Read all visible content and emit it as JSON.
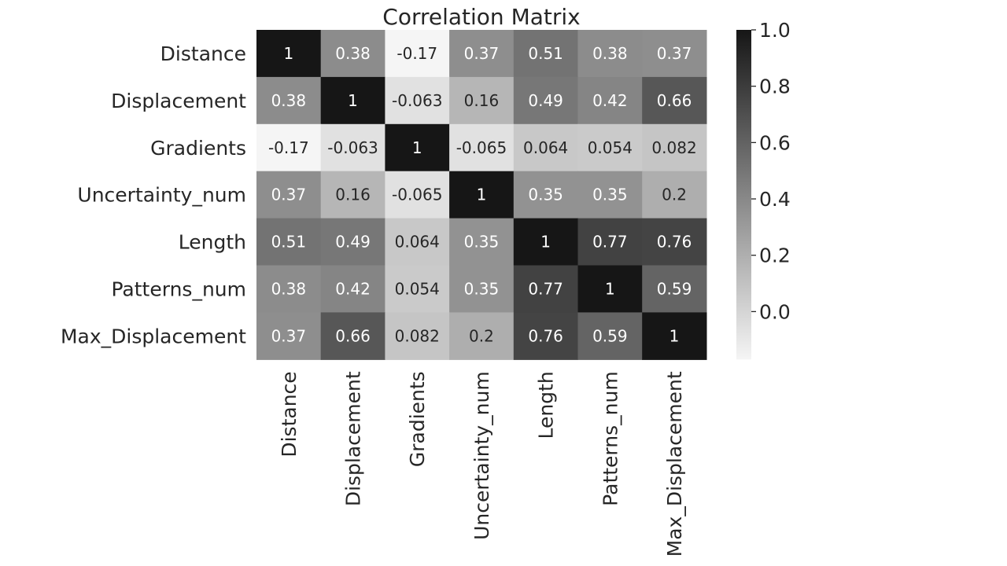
{
  "chart_data": {
    "type": "heatmap",
    "title": "Correlation Matrix",
    "xlabel": "",
    "ylabel": "",
    "rows": [
      "Distance",
      "Displacement",
      "Gradients",
      "Uncertainty_num",
      "Length",
      "Patterns_num",
      "Max_Displacement"
    ],
    "columns": [
      "Distance",
      "Displacement",
      "Gradients",
      "Uncertainty_num",
      "Length",
      "Patterns_num",
      "Max_Displacement"
    ],
    "values": [
      [
        1,
        0.38,
        -0.17,
        0.37,
        0.51,
        0.38,
        0.37
      ],
      [
        0.38,
        1,
        -0.063,
        0.16,
        0.49,
        0.42,
        0.66
      ],
      [
        -0.17,
        -0.063,
        1,
        -0.065,
        0.064,
        0.054,
        0.082
      ],
      [
        0.37,
        0.16,
        -0.065,
        1,
        0.35,
        0.35,
        0.2
      ],
      [
        0.51,
        0.49,
        0.064,
        0.35,
        1,
        0.77,
        0.76
      ],
      [
        0.38,
        0.42,
        0.054,
        0.35,
        0.77,
        1,
        0.59
      ],
      [
        0.37,
        0.66,
        0.082,
        0.2,
        0.76,
        0.59,
        1
      ]
    ],
    "cell_labels": [
      [
        "1",
        "0.38",
        "-0.17",
        "0.37",
        "0.51",
        "0.38",
        "0.37"
      ],
      [
        "0.38",
        "1",
        "-0.063",
        "0.16",
        "0.49",
        "0.42",
        "0.66"
      ],
      [
        "-0.17",
        "-0.063",
        "1",
        "-0.065",
        "0.064",
        "0.054",
        "0.082"
      ],
      [
        "0.37",
        "0.16",
        "-0.065",
        "1",
        "0.35",
        "0.35",
        "0.2"
      ],
      [
        "0.51",
        "0.49",
        "0.064",
        "0.35",
        "1",
        "0.77",
        "0.76"
      ],
      [
        "0.38",
        "0.42",
        "0.054",
        "0.35",
        "0.77",
        "1",
        "0.59"
      ],
      [
        "0.37",
        "0.66",
        "0.082",
        "0.2",
        "0.76",
        "0.59",
        "1"
      ]
    ],
    "colormap": "greys",
    "color_range": [
      -0.17,
      1.0
    ],
    "colorbar": {
      "ticks": [
        1.0,
        0.8,
        0.6,
        0.4,
        0.2,
        0.0
      ],
      "tick_labels": [
        "1.0",
        "0.8",
        "0.6",
        "0.4",
        "0.2",
        "0.0"
      ]
    },
    "grid": false,
    "legend": "colorbar-right",
    "colors": {
      "low": "#f5f5f5",
      "high": "#161616",
      "text_dark": "#262626",
      "text_light": "#ffffff"
    }
  }
}
